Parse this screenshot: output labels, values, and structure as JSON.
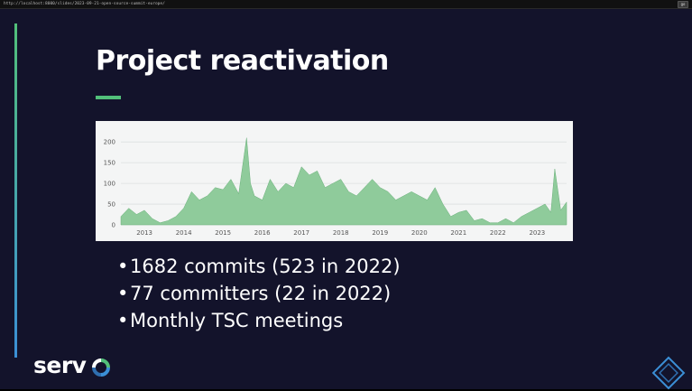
{
  "browser": {
    "url": "http://localhost:8000/slides/2023-09-21-open-source-summit-europe/",
    "button_label": "go"
  },
  "slide": {
    "title": "Project reactivation",
    "bullets": [
      "1682 commits (523 in 2022)",
      "77 committers (22 in 2022)",
      "Monthly TSC meetings"
    ],
    "logo_text": "serv",
    "colors": {
      "background": "#13132b",
      "accent_green": "#52c07a",
      "accent_blue": "#3b8fd6",
      "chart_fill": "#8fcb9b"
    }
  },
  "chart_data": {
    "type": "area",
    "title": "",
    "xlabel": "",
    "ylabel": "",
    "ylim": [
      0,
      220
    ],
    "xlim": [
      2012.4,
      2023.75
    ],
    "yticks": [
      0,
      50,
      100,
      150,
      200
    ],
    "xticks": [
      2013,
      2014,
      2015,
      2016,
      2017,
      2018,
      2019,
      2020,
      2021,
      2022,
      2023
    ],
    "grid": true,
    "series": [
      {
        "x": [
          2012.4,
          2012.6,
          2012.8,
          2013.0,
          2013.2,
          2013.4,
          2013.6,
          2013.8,
          2014.0,
          2014.2,
          2014.4,
          2014.6,
          2014.8,
          2015.0,
          2015.2,
          2015.4,
          2015.6,
          2015.7,
          2015.8,
          2016.0,
          2016.2,
          2016.4,
          2016.6,
          2016.8,
          2017.0,
          2017.2,
          2017.4,
          2017.6,
          2017.8,
          2018.0,
          2018.2,
          2018.4,
          2018.6,
          2018.8,
          2019.0,
          2019.2,
          2019.4,
          2019.6,
          2019.8,
          2020.0,
          2020.2,
          2020.4,
          2020.6,
          2020.8,
          2021.0,
          2021.2,
          2021.4,
          2021.6,
          2021.8,
          2022.0,
          2022.2,
          2022.4,
          2022.6,
          2022.8,
          2023.0,
          2023.2,
          2023.35,
          2023.45,
          2023.6,
          2023.75
        ],
        "y": [
          20,
          40,
          25,
          35,
          15,
          5,
          10,
          20,
          40,
          80,
          60,
          70,
          90,
          85,
          110,
          75,
          210,
          100,
          70,
          60,
          110,
          80,
          100,
          90,
          140,
          120,
          130,
          90,
          100,
          110,
          80,
          70,
          90,
          110,
          90,
          80,
          60,
          70,
          80,
          70,
          60,
          90,
          50,
          20,
          30,
          35,
          10,
          15,
          5,
          5,
          15,
          5,
          20,
          30,
          40,
          50,
          30,
          135,
          35,
          55
        ]
      }
    ]
  }
}
